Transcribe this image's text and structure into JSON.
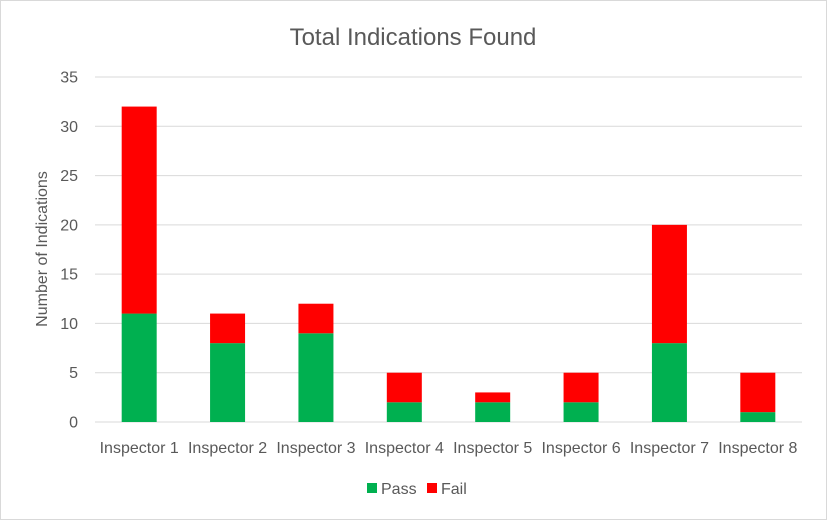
{
  "chart_data": {
    "type": "bar",
    "stacked": true,
    "title": "Total Indications Found",
    "xlabel": "",
    "ylabel": "Number of Indications",
    "categories": [
      "Inspector 1",
      "Inspector 2",
      "Inspector 3",
      "Inspector 4",
      "Inspector 5",
      "Inspector 6",
      "Inspector 7",
      "Inspector 8"
    ],
    "series": [
      {
        "name": "Pass",
        "color": "#00b050",
        "values": [
          11,
          8,
          9,
          2,
          2,
          2,
          8,
          1
        ]
      },
      {
        "name": "Fail",
        "color": "#ff0000",
        "values": [
          21,
          3,
          3,
          3,
          1,
          3,
          12,
          4
        ]
      }
    ],
    "ylim": [
      0,
      35
    ],
    "yticks": [
      0,
      5,
      10,
      15,
      20,
      25,
      30,
      35
    ],
    "grid": true,
    "legend_position": "bottom"
  }
}
